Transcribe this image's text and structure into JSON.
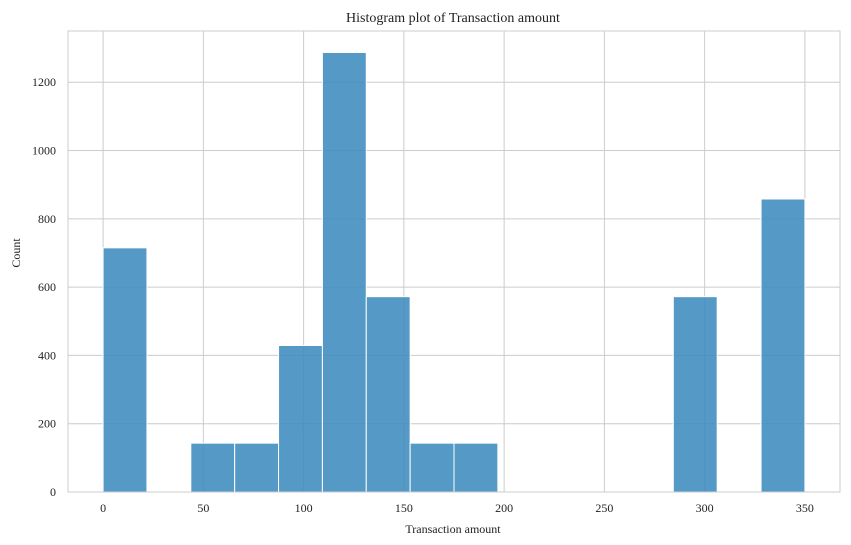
{
  "chart_data": {
    "type": "bar",
    "title": "Histogram plot of Transaction amount",
    "xlabel": "Transaction amount",
    "ylabel": "Count",
    "xlim": [
      -17.5,
      367.5
    ],
    "ylim": [
      0,
      1350
    ],
    "xticks": [
      0,
      50,
      100,
      150,
      200,
      250,
      300,
      350
    ],
    "yticks": [
      0,
      200,
      400,
      600,
      800,
      1000,
      1200
    ],
    "grid": true,
    "bar_color": "#3d8bbf",
    "bins": [
      {
        "x0": 0,
        "x1": 21.875,
        "count": 715
      },
      {
        "x0": 21.875,
        "x1": 43.75,
        "count": 0
      },
      {
        "x0": 43.75,
        "x1": 65.625,
        "count": 143
      },
      {
        "x0": 65.625,
        "x1": 87.5,
        "count": 143
      },
      {
        "x0": 87.5,
        "x1": 109.375,
        "count": 429
      },
      {
        "x0": 109.375,
        "x1": 131.25,
        "count": 1287
      },
      {
        "x0": 131.25,
        "x1": 153.125,
        "count": 572
      },
      {
        "x0": 153.125,
        "x1": 175,
        "count": 143
      },
      {
        "x0": 175,
        "x1": 196.875,
        "count": 143
      },
      {
        "x0": 196.875,
        "x1": 218.75,
        "count": 0
      },
      {
        "x0": 218.75,
        "x1": 240.625,
        "count": 0
      },
      {
        "x0": 240.625,
        "x1": 262.5,
        "count": 0
      },
      {
        "x0": 262.5,
        "x1": 284.375,
        "count": 0
      },
      {
        "x0": 284.375,
        "x1": 306.25,
        "count": 572
      },
      {
        "x0": 306.25,
        "x1": 328.125,
        "count": 0
      },
      {
        "x0": 328.125,
        "x1": 350,
        "count": 858
      }
    ]
  }
}
